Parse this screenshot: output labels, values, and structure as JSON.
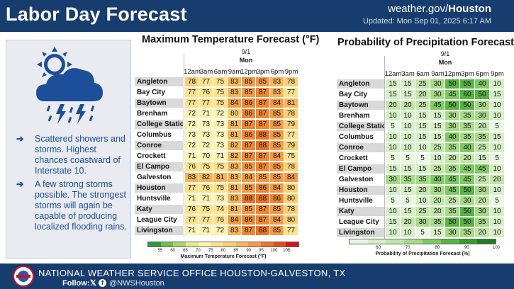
{
  "header": {
    "title": "Labor Day Forecast",
    "site_prefix": "weather.gov/",
    "site_office": "Houston",
    "updated": "Updated: Mon Sep 01, 2025 6:17 AM"
  },
  "panel": {
    "icon": "sun-cloud-rain-lightning-icon",
    "bullets": [
      "Scattered showers and storms. Highest chances coastward of Interstate 10.",
      "A few strong storms possible. The strongest storms will again be capable of producing localized flooding rains."
    ]
  },
  "cities": [
    "Angleton",
    "Bay City",
    "Baytown",
    "Brenham",
    "College Station",
    "Columbus",
    "Conroe",
    "Crockett",
    "El Campo",
    "Galveston",
    "Houston",
    "Huntsville",
    "Katy",
    "League City",
    "Livingston"
  ],
  "hours": [
    "12am",
    "3am",
    "6am",
    "9am",
    "12pm",
    "3pm",
    "6pm",
    "9pm"
  ],
  "temp": {
    "title": "Maximum Temperature Forecast (°F)",
    "date": "9/1",
    "day": "Mon",
    "values": [
      [
        78,
        77,
        75,
        83,
        85,
        85,
        83,
        78
      ],
      [
        77,
        76,
        75,
        83,
        85,
        87,
        83,
        77
      ],
      [
        77,
        77,
        75,
        84,
        86,
        87,
        84,
        81
      ],
      [
        72,
        71,
        72,
        80,
        86,
        87,
        85,
        78
      ],
      [
        72,
        73,
        73,
        81,
        87,
        87,
        85,
        79
      ],
      [
        73,
        73,
        73,
        81,
        86,
        88,
        85,
        77
      ],
      [
        72,
        72,
        73,
        82,
        87,
        88,
        85,
        79
      ],
      [
        71,
        70,
        71,
        82,
        87,
        87,
        84,
        75
      ],
      [
        76,
        75,
        75,
        83,
        85,
        87,
        85,
        78
      ],
      [
        83,
        82,
        81,
        83,
        84,
        85,
        85,
        84
      ],
      [
        77,
        76,
        75,
        81,
        85,
        86,
        84,
        80
      ],
      [
        71,
        71,
        73,
        83,
        88,
        88,
        86,
        80
      ],
      [
        76,
        75,
        74,
        81,
        85,
        87,
        85,
        78
      ],
      [
        77,
        77,
        76,
        84,
        86,
        87,
        84,
        80
      ],
      [
        71,
        71,
        72,
        83,
        87,
        88,
        85,
        77
      ]
    ],
    "scale_ticks": [
      "55",
      "60",
      "65",
      "70",
      "75",
      "80",
      "85",
      "90",
      "95",
      "100",
      "105"
    ],
    "scale_label": "Maximum Temperature Forecast (°F)"
  },
  "pop": {
    "title": "Probability of Precipitation Forecast (%)",
    "date": "9/1",
    "day": "Mon",
    "values": [
      [
        15,
        15,
        25,
        30,
        50,
        55,
        40,
        10
      ],
      [
        15,
        15,
        20,
        30,
        45,
        60,
        50,
        15
      ],
      [
        20,
        20,
        25,
        45,
        50,
        50,
        30,
        10
      ],
      [
        10,
        10,
        15,
        15,
        30,
        35,
        30,
        10
      ],
      [
        5,
        10,
        15,
        15,
        30,
        35,
        20,
        5
      ],
      [
        10,
        10,
        15,
        15,
        40,
        35,
        35,
        15
      ],
      [
        10,
        10,
        10,
        25,
        35,
        40,
        25,
        10
      ],
      [
        5,
        5,
        5,
        10,
        20,
        20,
        15,
        5
      ],
      [
        15,
        15,
        15,
        25,
        35,
        45,
        45,
        10
      ],
      [
        30,
        35,
        35,
        40,
        45,
        45,
        25,
        20
      ],
      [
        10,
        15,
        20,
        30,
        45,
        50,
        30,
        10
      ],
      [
        5,
        5,
        10,
        20,
        25,
        30,
        20,
        5
      ],
      [
        10,
        15,
        25,
        20,
        35,
        50,
        30,
        10
      ],
      [
        15,
        20,
        30,
        35,
        50,
        50,
        35,
        10
      ],
      [
        10,
        10,
        5,
        15,
        30,
        35,
        20,
        10
      ]
    ],
    "scale_ticks": [
      "60",
      "70",
      "80",
      "90",
      "100"
    ],
    "scale_label": "Probability of Precipitation Forecast (%)"
  },
  "footer": {
    "office": "NATIONAL WEATHER SERVICE OFFICE HOUSTON-GALVESTON, TX",
    "follow": "Follow:",
    "handle": "@NWSHouston",
    "x_icon": "x-logo-icon",
    "fb_icon": "facebook-icon"
  }
}
